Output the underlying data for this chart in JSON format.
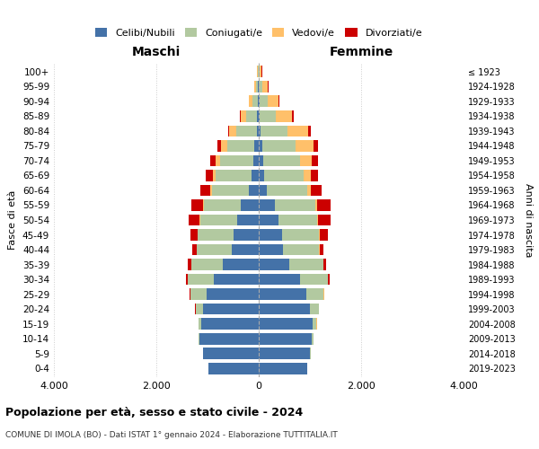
{
  "age_groups": [
    "0-4",
    "5-9",
    "10-14",
    "15-19",
    "20-24",
    "25-29",
    "30-34",
    "35-39",
    "40-44",
    "45-49",
    "50-54",
    "55-59",
    "60-64",
    "65-69",
    "70-74",
    "75-79",
    "80-84",
    "85-89",
    "90-94",
    "95-99",
    "100+"
  ],
  "birth_years": [
    "2019-2023",
    "2014-2018",
    "2009-2013",
    "2004-2008",
    "1999-2003",
    "1994-1998",
    "1989-1993",
    "1984-1988",
    "1979-1983",
    "1974-1978",
    "1969-1973",
    "1964-1968",
    "1959-1963",
    "1954-1958",
    "1949-1953",
    "1944-1948",
    "1939-1943",
    "1934-1938",
    "1929-1933",
    "1924-1928",
    "≤ 1923"
  ],
  "male": {
    "celibi": [
      980,
      1080,
      1150,
      1120,
      1080,
      1020,
      880,
      700,
      530,
      490,
      420,
      350,
      190,
      140,
      110,
      80,
      40,
      30,
      20,
      10,
      5
    ],
    "coniugati": [
      5,
      10,
      20,
      60,
      150,
      310,
      510,
      620,
      680,
      700,
      720,
      720,
      720,
      700,
      640,
      540,
      390,
      210,
      110,
      50,
      20
    ],
    "vedovi": [
      0,
      1,
      1,
      2,
      2,
      2,
      1,
      3,
      5,
      8,
      12,
      20,
      35,
      60,
      90,
      120,
      150,
      110,
      65,
      25,
      10
    ],
    "divorziati": [
      0,
      0,
      1,
      2,
      5,
      15,
      30,
      55,
      85,
      140,
      210,
      230,
      190,
      140,
      110,
      70,
      25,
      12,
      6,
      3,
      1
    ]
  },
  "female": {
    "nubili": [
      940,
      1000,
      1040,
      1060,
      1000,
      930,
      810,
      600,
      470,
      450,
      380,
      310,
      160,
      110,
      90,
      65,
      35,
      25,
      18,
      8,
      5
    ],
    "coniugate": [
      5,
      12,
      25,
      70,
      170,
      340,
      540,
      660,
      710,
      730,
      760,
      790,
      790,
      760,
      710,
      660,
      530,
      300,
      160,
      65,
      20
    ],
    "vedove": [
      0,
      1,
      1,
      2,
      2,
      2,
      2,
      3,
      5,
      10,
      20,
      35,
      70,
      140,
      230,
      340,
      400,
      330,
      210,
      110,
      35
    ],
    "divorziate": [
      0,
      0,
      1,
      2,
      5,
      15,
      30,
      55,
      85,
      160,
      240,
      270,
      210,
      150,
      130,
      90,
      45,
      22,
      10,
      5,
      2
    ]
  },
  "colors": {
    "celibi": "#4472a8",
    "coniugati": "#b2c9a0",
    "vedovi": "#ffc06a",
    "divorziati": "#cc0000"
  },
  "title1": "Popolazione per età, sesso e stato civile - 2024",
  "title2": "COMUNE DI IMOLA (BO) - Dati ISTAT 1° gennaio 2024 - Elaborazione TUTTITALIA.IT",
  "xlabel_left": "Maschi",
  "xlabel_right": "Femmine",
  "ylabel_left": "Fasce di età",
  "ylabel_right": "Anni di nascita",
  "xlim": 4000,
  "xtick_labels": [
    "4.000",
    "2.000",
    "0",
    "2.000",
    "4.000"
  ],
  "legend_labels": [
    "Celibi/Nubili",
    "Coniugati/e",
    "Vedovi/e",
    "Divorziati/e"
  ]
}
